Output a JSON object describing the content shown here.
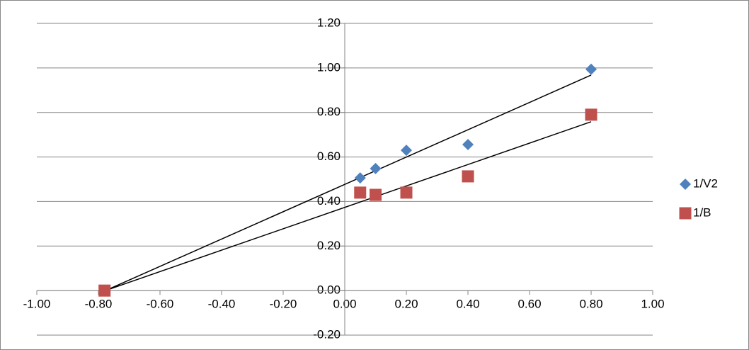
{
  "chart_data": {
    "type": "scatter",
    "series": [
      {
        "name": "1/V2",
        "color": "#4f81bd",
        "marker": "diamond",
        "x": [
          -0.78,
          0.05,
          0.1,
          0.2,
          0.4,
          0.8
        ],
        "values": [
          0,
          0.506,
          0.548,
          0.63,
          0.656,
          0.994
        ]
      },
      {
        "name": "1/B",
        "color": "#c0504d",
        "marker": "square",
        "x": [
          -0.78,
          0.05,
          0.1,
          0.2,
          0.4,
          0.8
        ],
        "values": [
          0,
          0.44,
          0.43,
          0.44,
          0.513,
          0.79
        ]
      }
    ],
    "trendline": true,
    "xlim": [
      -1,
      1
    ],
    "xticks": [
      {
        "value": -1,
        "label": "-1.00"
      },
      {
        "value": -0.8,
        "label": "-0.80"
      },
      {
        "value": -0.6,
        "label": "-0.60"
      },
      {
        "value": -0.4,
        "label": "-0.40"
      },
      {
        "value": -0.2,
        "label": "-0.20"
      },
      {
        "value": 0,
        "label": "0.00"
      },
      {
        "value": 0.2,
        "label": "0.20"
      },
      {
        "value": 0.4,
        "label": "0.40"
      },
      {
        "value": 0.6,
        "label": "0.60"
      },
      {
        "value": 0.8,
        "label": "0.80"
      },
      {
        "value": 1,
        "label": "1.00"
      }
    ],
    "ylim": [
      -0.2,
      1.2
    ],
    "yticks": [
      {
        "value": -0.2,
        "label": "-0.20"
      },
      {
        "value": 0,
        "label": "0.00"
      },
      {
        "value": 0.2,
        "label": "0.20"
      },
      {
        "value": 0.4,
        "label": "0.40"
      },
      {
        "value": 0.6,
        "label": "0.60"
      },
      {
        "value": 0.8,
        "label": "0.80"
      },
      {
        "value": 1,
        "label": "1.00"
      },
      {
        "value": 1.2,
        "label": "1.20"
      }
    ],
    "grid": true,
    "legend": "right"
  }
}
